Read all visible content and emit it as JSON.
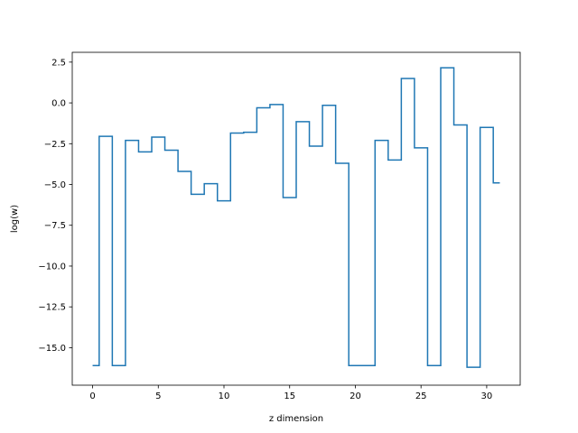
{
  "chart_data": {
    "type": "line",
    "step": "mid",
    "title": "",
    "xlabel": "z dimension",
    "ylabel": "log(w)",
    "xlim": [
      -1.55,
      32.55
    ],
    "ylim": [
      -17.3,
      3.1
    ],
    "xticks": [
      0,
      5,
      10,
      15,
      20,
      25,
      30
    ],
    "xtick_labels": [
      "0",
      "5",
      "10",
      "15",
      "20",
      "25",
      "30"
    ],
    "yticks": [
      2.5,
      0.0,
      -2.5,
      -5.0,
      -7.5,
      -10.0,
      -12.5,
      -15.0
    ],
    "ytick_labels": [
      "2.5",
      "0.0",
      "−2.5",
      "−5.0",
      "−7.5",
      "−10.0",
      "−12.5",
      "−15.0"
    ],
    "grid": false,
    "series": [
      {
        "color": "#1f77b4",
        "x": [
          0,
          1,
          2,
          3,
          4,
          5,
          6,
          7,
          8,
          9,
          10,
          11,
          12,
          13,
          14,
          15,
          16,
          17,
          18,
          19,
          20,
          21,
          22,
          23,
          24,
          25,
          26,
          27,
          28,
          29,
          30,
          31
        ],
        "y": [
          -16.1,
          -2.05,
          -16.1,
          -2.3,
          -3.0,
          -2.1,
          -2.9,
          -4.2,
          -5.6,
          -4.95,
          -6.0,
          -1.85,
          -1.8,
          -0.3,
          -0.1,
          -5.8,
          -1.15,
          -2.65,
          -0.15,
          -3.7,
          -16.1,
          -16.1,
          -2.3,
          -3.5,
          1.5,
          -2.75,
          -16.1,
          2.15,
          -1.35,
          -16.2,
          -1.5,
          -4.9
        ]
      }
    ]
  }
}
